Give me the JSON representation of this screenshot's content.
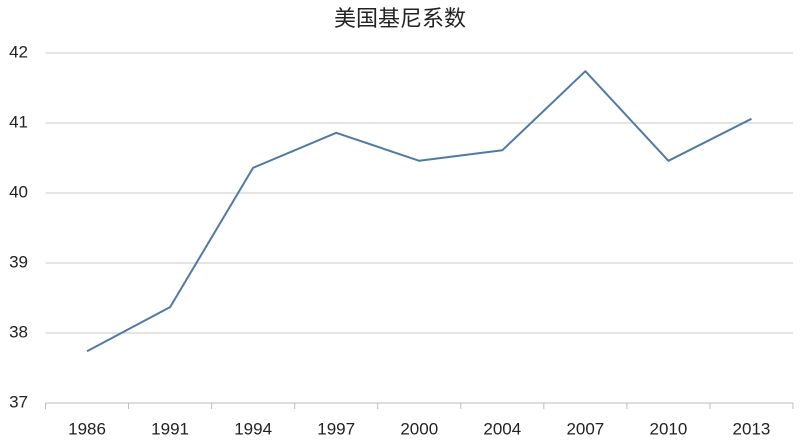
{
  "chart_data": {
    "type": "line",
    "title": "美国基尼系数",
    "categories": [
      "1986",
      "1991",
      "1994",
      "1997",
      "2000",
      "2004",
      "2007",
      "2010",
      "2013"
    ],
    "values": [
      37.74,
      38.37,
      40.36,
      40.86,
      40.46,
      40.61,
      41.74,
      40.46,
      41.06
    ],
    "color": "#4f7aa6",
    "ylim": [
      37,
      42
    ],
    "yticks": [
      37,
      38,
      39,
      40,
      41,
      42
    ],
    "grid": true
  }
}
